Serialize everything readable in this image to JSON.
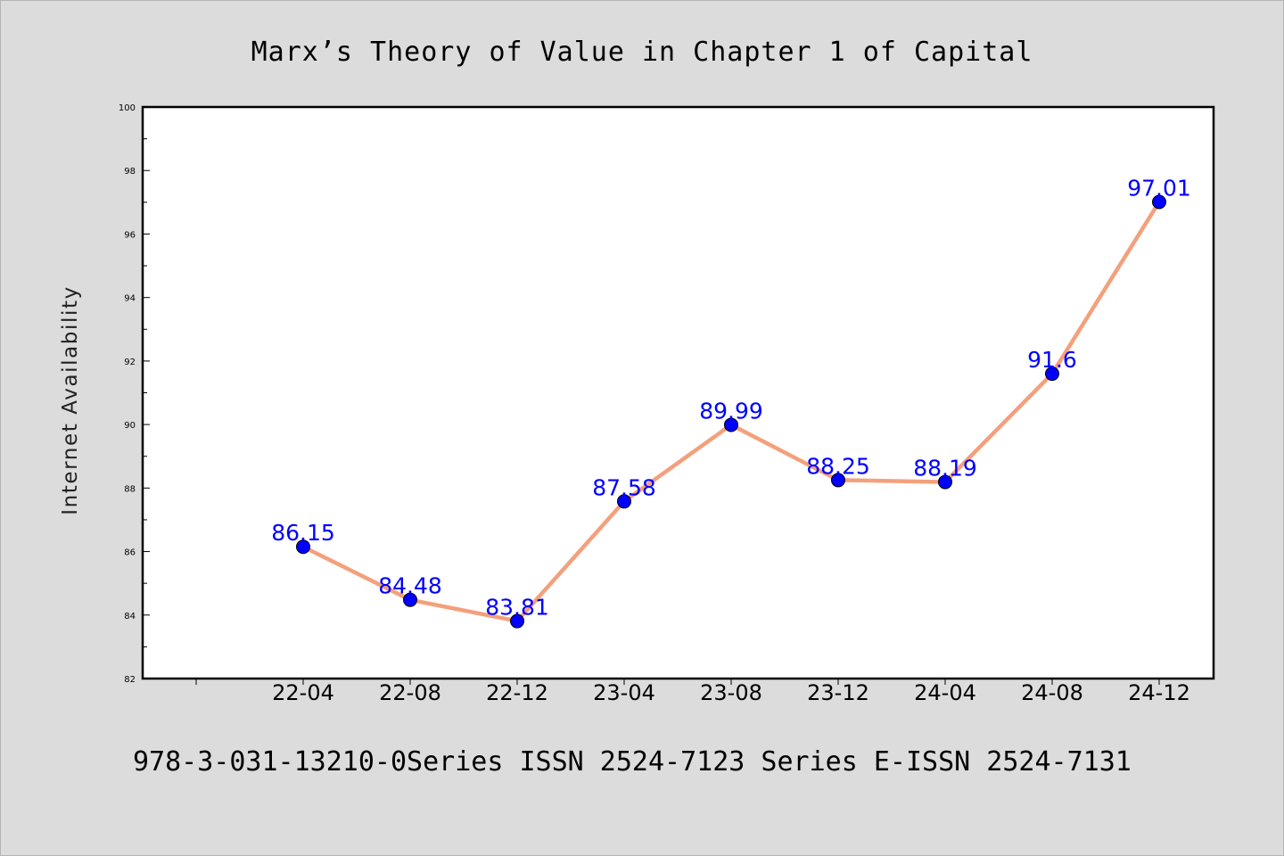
{
  "chart_data": {
    "type": "line",
    "title": "Marx’s Theory of Value in Chapter 1 of Capital",
    "ylabel": "Internet Availability",
    "xlabel": "",
    "categories": [
      "22-04",
      "22-08",
      "22-12",
      "23-04",
      "23-08",
      "23-12",
      "24-04",
      "24-08",
      "24-12"
    ],
    "series": [
      {
        "values": [
          86.15,
          84.48,
          83.81,
          87.58,
          89.99,
          88.25,
          88.19,
          91.6,
          97.01
        ],
        "data_labels": [
          "86.15",
          "84.48",
          "83.81",
          "87.58",
          "89.99",
          "88.25",
          "88.19",
          "91.6",
          "97.01"
        ]
      }
    ],
    "ylim": [
      82,
      100
    ],
    "y_ticks": [
      "82",
      "84",
      "86",
      "88",
      "90",
      "92",
      "94",
      "96",
      "98",
      "100"
    ],
    "grid": false,
    "legend": "none",
    "colors": {
      "line": "#f4a07c",
      "marker": "#0000ff",
      "data_label": "#0000ff",
      "plot_background": "#ffffff",
      "page_background": "#dcdcdc"
    }
  },
  "footer": {
    "text": "978-3-031-13210-0Series ISSN 2524-7123 Series E-ISSN 2524-7131"
  }
}
